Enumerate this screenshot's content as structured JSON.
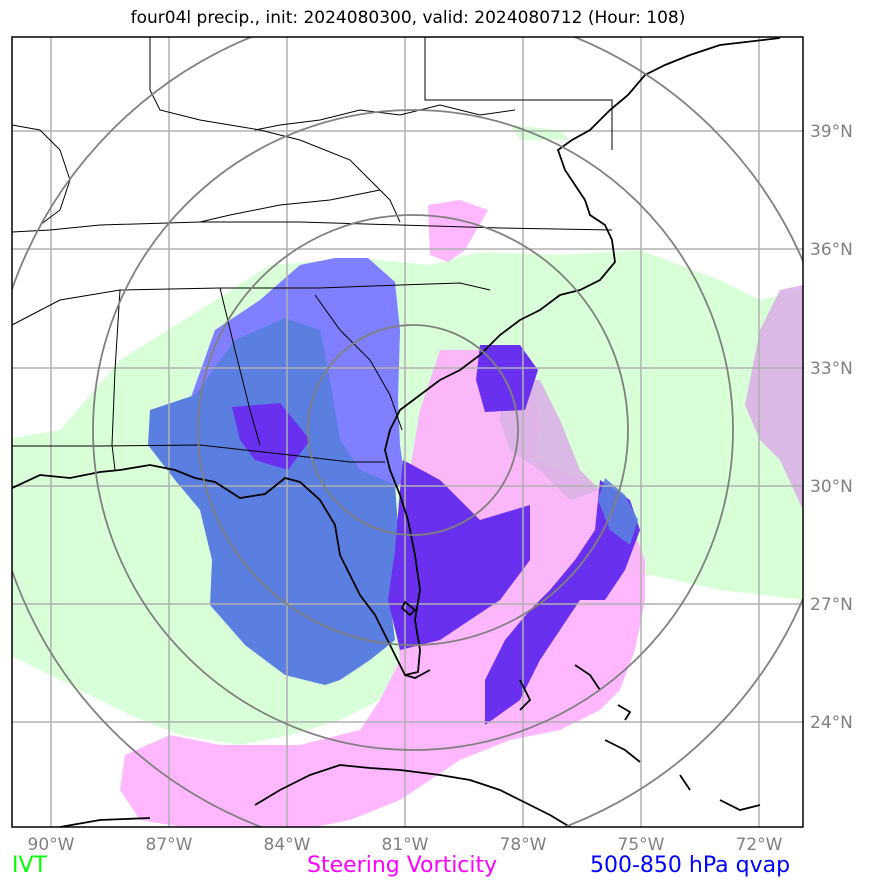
{
  "title": "four04l precip., init: 2024080300, valid: 2024080712 (Hour: 108)",
  "lon_ticks": [
    "90°W",
    "87°W",
    "84°W",
    "81°W",
    "78°W",
    "75°W",
    "72°W"
  ],
  "lat_ticks": [
    "39°N",
    "36°N",
    "33°N",
    "30°N",
    "27°N",
    "24°N"
  ],
  "legend": [
    {
      "label": "IVT",
      "color": "#00ff00"
    },
    {
      "label": "Steering Vorticity",
      "color": "#ff00ff"
    },
    {
      "label": "500-850 hPa qvap",
      "color": "#0000ff"
    }
  ],
  "colors": {
    "ivt_fill": "#ccffcc",
    "vorticity_fill": "#ffaaff",
    "qvap_light": "#7f7fff",
    "qvap_mid": "#5a7fe0",
    "qvap_dark": "#6a30f0",
    "grid": "#b0b0b0",
    "rings": "#808080"
  }
}
